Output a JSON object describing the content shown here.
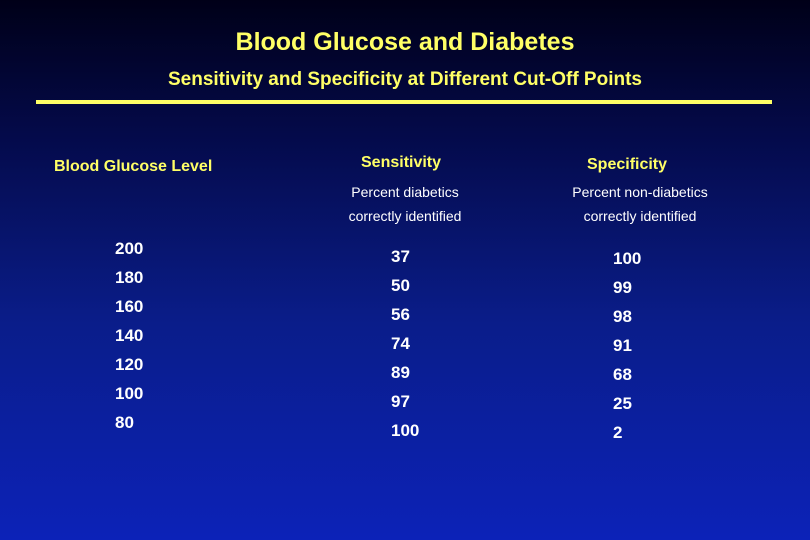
{
  "slide": {
    "title": "Blood Glucose and Diabetes",
    "subtitle": "Sensitivity and Specificity at Different Cut-Off Points"
  },
  "table": {
    "columns": [
      {
        "header": "Blood Glucose Level",
        "subheader": "",
        "values": [
          "200",
          "180",
          "160",
          "140",
          "120",
          "100",
          "80"
        ]
      },
      {
        "header": "Sensitivity",
        "subheader_lines": [
          "Percent diabetics",
          "correctly identified"
        ],
        "values": [
          "37",
          "50",
          "56",
          "74",
          "89",
          "97",
          "100"
        ]
      },
      {
        "header": "Specificity",
        "subheader_lines": [
          "Percent non-diabetics",
          "correctly identified"
        ],
        "values": [
          "100",
          "99",
          "98",
          "91",
          "68",
          "25",
          "2"
        ]
      }
    ]
  },
  "colors": {
    "accent": "#ffff66",
    "text": "#ffffff",
    "background_top": "#000018",
    "background_bottom": "#0c22b8"
  }
}
